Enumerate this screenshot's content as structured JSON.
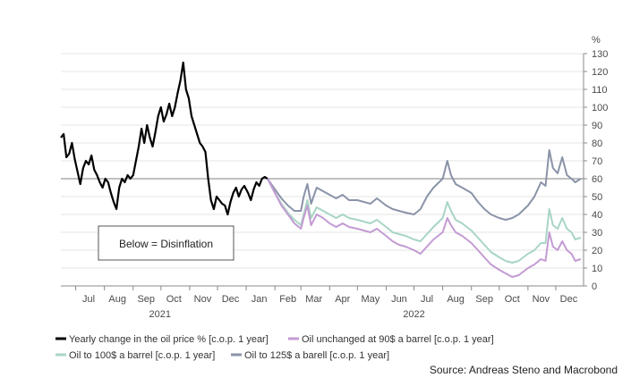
{
  "chart_data": {
    "type": "line",
    "unit_label": "%",
    "ylim": [
      0,
      130
    ],
    "yticks": [
      0,
      10,
      20,
      30,
      40,
      50,
      60,
      70,
      80,
      90,
      100,
      110,
      120,
      130
    ],
    "xlim": [
      "2021-06-15",
      "2022-12-31"
    ],
    "month_labels": [
      {
        "label": "Jul",
        "date": "2021-07-15"
      },
      {
        "label": "Aug",
        "date": "2021-08-15"
      },
      {
        "label": "Sep",
        "date": "2021-09-15"
      },
      {
        "label": "Oct",
        "date": "2021-10-15"
      },
      {
        "label": "Nov",
        "date": "2021-11-15"
      },
      {
        "label": "Dec",
        "date": "2021-12-15"
      },
      {
        "label": "Jan",
        "date": "2022-01-15"
      },
      {
        "label": "Feb",
        "date": "2022-02-15"
      },
      {
        "label": "Mar",
        "date": "2022-03-15"
      },
      {
        "label": "Apr",
        "date": "2022-04-15"
      },
      {
        "label": "May",
        "date": "2022-05-15"
      },
      {
        "label": "Jun",
        "date": "2022-06-15"
      },
      {
        "label": "Jul",
        "date": "2022-07-15"
      },
      {
        "label": "Aug",
        "date": "2022-08-15"
      },
      {
        "label": "Sep",
        "date": "2022-09-15"
      },
      {
        "label": "Oct",
        "date": "2022-10-15"
      },
      {
        "label": "Nov",
        "date": "2022-11-15"
      },
      {
        "label": "Dec",
        "date": "2022-12-15"
      }
    ],
    "year_labels": [
      {
        "label": "2021",
        "date": "2021-09-30"
      },
      {
        "label": "2022",
        "date": "2022-07-01"
      }
    ],
    "reference_line": {
      "y": 60,
      "color": "#9a9a9a"
    },
    "annotation": {
      "text": "Below = Disinflation"
    },
    "source": "Source: Andreas Steno and Macrobond",
    "series": [
      {
        "name": "Yearly change in the oil price % [c.o.p. 1 year]",
        "color": "#000000",
        "points": [
          [
            "2021-06-15",
            83
          ],
          [
            "2021-06-18",
            85
          ],
          [
            "2021-06-21",
            72
          ],
          [
            "2021-06-24",
            74
          ],
          [
            "2021-06-27",
            80
          ],
          [
            "2021-06-30",
            71
          ],
          [
            "2021-07-03",
            64
          ],
          [
            "2021-07-06",
            57
          ],
          [
            "2021-07-09",
            66
          ],
          [
            "2021-07-12",
            70
          ],
          [
            "2021-07-15",
            68
          ],
          [
            "2021-07-18",
            73
          ],
          [
            "2021-07-21",
            65
          ],
          [
            "2021-07-24",
            62
          ],
          [
            "2021-07-27",
            58
          ],
          [
            "2021-07-30",
            55
          ],
          [
            "2021-08-02",
            60
          ],
          [
            "2021-08-05",
            58
          ],
          [
            "2021-08-08",
            52
          ],
          [
            "2021-08-11",
            47
          ],
          [
            "2021-08-14",
            43
          ],
          [
            "2021-08-17",
            55
          ],
          [
            "2021-08-20",
            60
          ],
          [
            "2021-08-23",
            58
          ],
          [
            "2021-08-26",
            62
          ],
          [
            "2021-08-29",
            60
          ],
          [
            "2021-09-01",
            62
          ],
          [
            "2021-09-04",
            70
          ],
          [
            "2021-09-07",
            78
          ],
          [
            "2021-09-10",
            88
          ],
          [
            "2021-09-13",
            80
          ],
          [
            "2021-09-16",
            90
          ],
          [
            "2021-09-19",
            83
          ],
          [
            "2021-09-22",
            78
          ],
          [
            "2021-09-25",
            86
          ],
          [
            "2021-09-28",
            95
          ],
          [
            "2021-10-01",
            100
          ],
          [
            "2021-10-04",
            92
          ],
          [
            "2021-10-07",
            96
          ],
          [
            "2021-10-10",
            102
          ],
          [
            "2021-10-13",
            95
          ],
          [
            "2021-10-16",
            100
          ],
          [
            "2021-10-19",
            108
          ],
          [
            "2021-10-22",
            115
          ],
          [
            "2021-10-25",
            125
          ],
          [
            "2021-10-28",
            110
          ],
          [
            "2021-10-31",
            105
          ],
          [
            "2021-11-03",
            95
          ],
          [
            "2021-11-06",
            90
          ],
          [
            "2021-11-09",
            85
          ],
          [
            "2021-11-12",
            80
          ],
          [
            "2021-11-15",
            78
          ],
          [
            "2021-11-18",
            75
          ],
          [
            "2021-11-21",
            60
          ],
          [
            "2021-11-24",
            48
          ],
          [
            "2021-11-27",
            43
          ],
          [
            "2021-11-30",
            50
          ],
          [
            "2021-12-03",
            48
          ],
          [
            "2021-12-06",
            46
          ],
          [
            "2021-12-09",
            45
          ],
          [
            "2021-12-12",
            40
          ],
          [
            "2021-12-15",
            47
          ],
          [
            "2021-12-18",
            52
          ],
          [
            "2021-12-21",
            55
          ],
          [
            "2021-12-24",
            50
          ],
          [
            "2021-12-27",
            54
          ],
          [
            "2021-12-30",
            56
          ],
          [
            "2022-01-03",
            52
          ],
          [
            "2022-01-06",
            48
          ],
          [
            "2022-01-09",
            54
          ],
          [
            "2022-01-12",
            58
          ],
          [
            "2022-01-15",
            56
          ],
          [
            "2022-01-18",
            60
          ],
          [
            "2022-01-21",
            61
          ],
          [
            "2022-01-24",
            60
          ]
        ]
      },
      {
        "name": "Oil unchanged at 90$ a barrel [c.o.p. 1 year]",
        "color": "#c39bd3",
        "points": [
          [
            "2022-01-24",
            60
          ],
          [
            "2022-02-01",
            52
          ],
          [
            "2022-02-08",
            45
          ],
          [
            "2022-02-15",
            40
          ],
          [
            "2022-02-22",
            35
          ],
          [
            "2022-03-01",
            32
          ],
          [
            "2022-03-04",
            38
          ],
          [
            "2022-03-08",
            45
          ],
          [
            "2022-03-12",
            34
          ],
          [
            "2022-03-18",
            40
          ],
          [
            "2022-03-25",
            38
          ],
          [
            "2022-04-01",
            35
          ],
          [
            "2022-04-08",
            33
          ],
          [
            "2022-04-15",
            35
          ],
          [
            "2022-04-22",
            33
          ],
          [
            "2022-05-01",
            32
          ],
          [
            "2022-05-08",
            31
          ],
          [
            "2022-05-15",
            30
          ],
          [
            "2022-05-22",
            32
          ],
          [
            "2022-06-01",
            28
          ],
          [
            "2022-06-08",
            25
          ],
          [
            "2022-06-15",
            23
          ],
          [
            "2022-06-22",
            22
          ],
          [
            "2022-07-01",
            20
          ],
          [
            "2022-07-08",
            18
          ],
          [
            "2022-07-15",
            22
          ],
          [
            "2022-07-22",
            26
          ],
          [
            "2022-08-01",
            30
          ],
          [
            "2022-08-06",
            38
          ],
          [
            "2022-08-10",
            34
          ],
          [
            "2022-08-15",
            30
          ],
          [
            "2022-08-22",
            28
          ],
          [
            "2022-09-01",
            24
          ],
          [
            "2022-09-08",
            20
          ],
          [
            "2022-09-15",
            16
          ],
          [
            "2022-09-22",
            12
          ],
          [
            "2022-10-01",
            9
          ],
          [
            "2022-10-08",
            7
          ],
          [
            "2022-10-15",
            5
          ],
          [
            "2022-10-22",
            6
          ],
          [
            "2022-11-01",
            10
          ],
          [
            "2022-11-08",
            12
          ],
          [
            "2022-11-15",
            15
          ],
          [
            "2022-11-20",
            14
          ],
          [
            "2022-11-24",
            30
          ],
          [
            "2022-11-28",
            22
          ],
          [
            "2022-12-03",
            20
          ],
          [
            "2022-12-08",
            25
          ],
          [
            "2022-12-13",
            20
          ],
          [
            "2022-12-18",
            18
          ],
          [
            "2022-12-22",
            14
          ],
          [
            "2022-12-28",
            15
          ]
        ]
      },
      {
        "name": "Oil to 100$ a barrel [c.o.p. 1 year]",
        "color": "#a8d5c4",
        "points": [
          [
            "2022-01-24",
            60
          ],
          [
            "2022-02-01",
            52
          ],
          [
            "2022-02-08",
            46
          ],
          [
            "2022-02-15",
            41
          ],
          [
            "2022-02-22",
            37
          ],
          [
            "2022-03-01",
            34
          ],
          [
            "2022-03-04",
            40
          ],
          [
            "2022-03-08",
            48
          ],
          [
            "2022-03-12",
            38
          ],
          [
            "2022-03-18",
            44
          ],
          [
            "2022-03-25",
            42
          ],
          [
            "2022-04-01",
            40
          ],
          [
            "2022-04-08",
            38
          ],
          [
            "2022-04-15",
            40
          ],
          [
            "2022-04-22",
            38
          ],
          [
            "2022-05-01",
            37
          ],
          [
            "2022-05-08",
            36
          ],
          [
            "2022-05-15",
            35
          ],
          [
            "2022-05-22",
            37
          ],
          [
            "2022-06-01",
            33
          ],
          [
            "2022-06-08",
            30
          ],
          [
            "2022-06-15",
            29
          ],
          [
            "2022-06-22",
            28
          ],
          [
            "2022-07-01",
            26
          ],
          [
            "2022-07-08",
            25
          ],
          [
            "2022-07-15",
            29
          ],
          [
            "2022-07-22",
            33
          ],
          [
            "2022-08-01",
            38
          ],
          [
            "2022-08-06",
            47
          ],
          [
            "2022-08-10",
            42
          ],
          [
            "2022-08-15",
            37
          ],
          [
            "2022-08-22",
            35
          ],
          [
            "2022-09-01",
            31
          ],
          [
            "2022-09-08",
            27
          ],
          [
            "2022-09-15",
            23
          ],
          [
            "2022-09-22",
            19
          ],
          [
            "2022-10-01",
            16
          ],
          [
            "2022-10-08",
            14
          ],
          [
            "2022-10-15",
            13
          ],
          [
            "2022-10-22",
            14
          ],
          [
            "2022-11-01",
            18
          ],
          [
            "2022-11-08",
            20
          ],
          [
            "2022-11-15",
            24
          ],
          [
            "2022-11-20",
            24
          ],
          [
            "2022-11-24",
            43
          ],
          [
            "2022-11-28",
            34
          ],
          [
            "2022-12-03",
            32
          ],
          [
            "2022-12-08",
            38
          ],
          [
            "2022-12-13",
            32
          ],
          [
            "2022-12-18",
            30
          ],
          [
            "2022-12-22",
            26
          ],
          [
            "2022-12-28",
            27
          ]
        ]
      },
      {
        "name": "Oil to 125$ a barell [c.o.p. 1 year]",
        "color": "#8a93a8",
        "points": [
          [
            "2022-01-24",
            60
          ],
          [
            "2022-02-01",
            54
          ],
          [
            "2022-02-08",
            49
          ],
          [
            "2022-02-15",
            45
          ],
          [
            "2022-02-22",
            42
          ],
          [
            "2022-03-01",
            42
          ],
          [
            "2022-03-04",
            50
          ],
          [
            "2022-03-08",
            57
          ],
          [
            "2022-03-12",
            46
          ],
          [
            "2022-03-18",
            55
          ],
          [
            "2022-03-25",
            53
          ],
          [
            "2022-04-01",
            51
          ],
          [
            "2022-04-08",
            49
          ],
          [
            "2022-04-15",
            51
          ],
          [
            "2022-04-22",
            48
          ],
          [
            "2022-05-01",
            48
          ],
          [
            "2022-05-08",
            47
          ],
          [
            "2022-05-15",
            46
          ],
          [
            "2022-05-22",
            49
          ],
          [
            "2022-06-01",
            45
          ],
          [
            "2022-06-08",
            43
          ],
          [
            "2022-06-15",
            42
          ],
          [
            "2022-06-22",
            41
          ],
          [
            "2022-07-01",
            40
          ],
          [
            "2022-07-08",
            43
          ],
          [
            "2022-07-15",
            50
          ],
          [
            "2022-07-22",
            55
          ],
          [
            "2022-08-01",
            60
          ],
          [
            "2022-08-06",
            70
          ],
          [
            "2022-08-10",
            62
          ],
          [
            "2022-08-15",
            57
          ],
          [
            "2022-08-22",
            55
          ],
          [
            "2022-09-01",
            52
          ],
          [
            "2022-09-08",
            47
          ],
          [
            "2022-09-15",
            43
          ],
          [
            "2022-09-22",
            40
          ],
          [
            "2022-10-01",
            38
          ],
          [
            "2022-10-08",
            37
          ],
          [
            "2022-10-15",
            38
          ],
          [
            "2022-10-22",
            40
          ],
          [
            "2022-11-01",
            45
          ],
          [
            "2022-11-08",
            50
          ],
          [
            "2022-11-15",
            58
          ],
          [
            "2022-11-20",
            56
          ],
          [
            "2022-11-24",
            76
          ],
          [
            "2022-11-28",
            66
          ],
          [
            "2022-12-03",
            63
          ],
          [
            "2022-12-08",
            72
          ],
          [
            "2022-12-13",
            62
          ],
          [
            "2022-12-18",
            60
          ],
          [
            "2022-12-22",
            58
          ],
          [
            "2022-12-28",
            60
          ]
        ]
      }
    ]
  }
}
